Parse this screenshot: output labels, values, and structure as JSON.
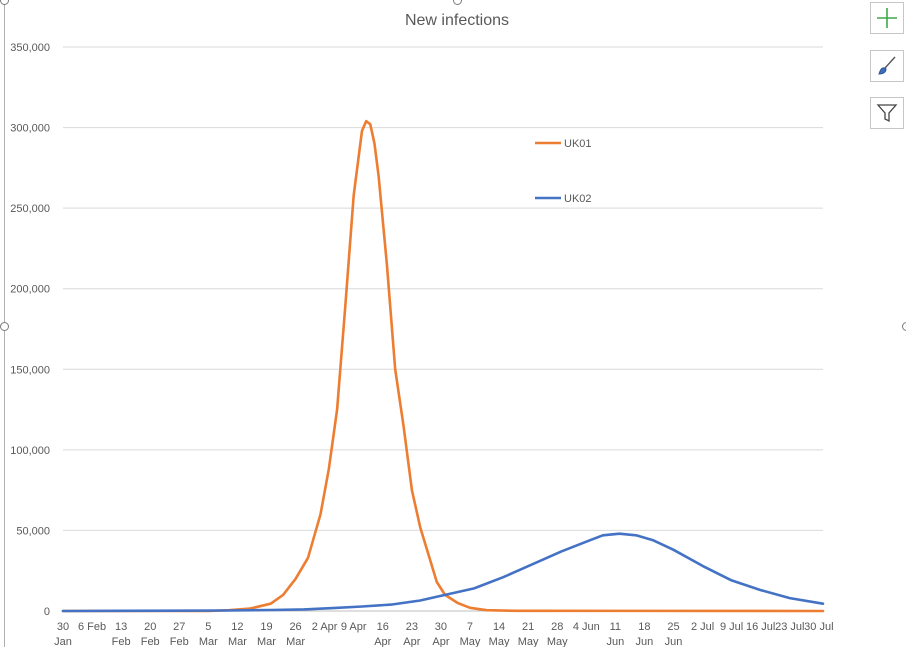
{
  "chart_data": {
    "type": "line",
    "title": "New infections",
    "xlabel": "",
    "ylabel": "",
    "ylim": [
      0,
      350000
    ],
    "yticks": [
      {
        "value": 0,
        "label": "0"
      },
      {
        "value": 50000,
        "label": "50,000"
      },
      {
        "value": 100000,
        "label": "100,000"
      },
      {
        "value": 150000,
        "label": "150,000"
      },
      {
        "value": 200000,
        "label": "200,000"
      },
      {
        "value": 250000,
        "label": "250,000"
      },
      {
        "value": 300000,
        "label": "300,000"
      },
      {
        "value": 350000,
        "label": "350,000"
      }
    ],
    "xlim": [
      "2020-01-30",
      "2020-07-31"
    ],
    "xticks": [
      {
        "date": "2020-01-30",
        "line1": "30",
        "line2": "Jan"
      },
      {
        "date": "2020-02-06",
        "line1": "6 Feb",
        "line2": ""
      },
      {
        "date": "2020-02-13",
        "line1": "13",
        "line2": "Feb"
      },
      {
        "date": "2020-02-20",
        "line1": "20",
        "line2": "Feb"
      },
      {
        "date": "2020-02-27",
        "line1": "27",
        "line2": "Feb"
      },
      {
        "date": "2020-03-05",
        "line1": "5",
        "line2": "Mar"
      },
      {
        "date": "2020-03-12",
        "line1": "12",
        "line2": "Mar"
      },
      {
        "date": "2020-03-19",
        "line1": "19",
        "line2": "Mar"
      },
      {
        "date": "2020-03-26",
        "line1": "26",
        "line2": "Mar"
      },
      {
        "date": "2020-04-02",
        "line1": "2 Apr",
        "line2": ""
      },
      {
        "date": "2020-04-09",
        "line1": "9 Apr",
        "line2": ""
      },
      {
        "date": "2020-04-16",
        "line1": "16",
        "line2": "Apr"
      },
      {
        "date": "2020-04-23",
        "line1": "23",
        "line2": "Apr"
      },
      {
        "date": "2020-04-30",
        "line1": "30",
        "line2": "Apr"
      },
      {
        "date": "2020-05-07",
        "line1": "7",
        "line2": "May"
      },
      {
        "date": "2020-05-14",
        "line1": "14",
        "line2": "May"
      },
      {
        "date": "2020-05-21",
        "line1": "21",
        "line2": "May"
      },
      {
        "date": "2020-05-28",
        "line1": "28",
        "line2": "May"
      },
      {
        "date": "2020-06-04",
        "line1": "4 Jun",
        "line2": ""
      },
      {
        "date": "2020-06-11",
        "line1": "11",
        "line2": "Jun"
      },
      {
        "date": "2020-06-18",
        "line1": "18",
        "line2": "Jun"
      },
      {
        "date": "2020-06-25",
        "line1": "25",
        "line2": "Jun"
      },
      {
        "date": "2020-07-02",
        "line1": "2 Jul",
        "line2": ""
      },
      {
        "date": "2020-07-09",
        "line1": "9 Jul",
        "line2": ""
      },
      {
        "date": "2020-07-16",
        "line1": "16 Jul",
        "line2": ""
      },
      {
        "date": "2020-07-23",
        "line1": "23 Jul",
        "line2": ""
      },
      {
        "date": "2020-07-30",
        "line1": "30 Jul",
        "line2": ""
      }
    ],
    "grid": true,
    "legend_position": "top-right",
    "series": [
      {
        "name": "UK01",
        "color": "#ED7D31",
        "points": [
          [
            "2020-01-30",
            0
          ],
          [
            "2020-03-05",
            0
          ],
          [
            "2020-03-10",
            500
          ],
          [
            "2020-03-15",
            1500
          ],
          [
            "2020-03-20",
            4500
          ],
          [
            "2020-03-23",
            10000
          ],
          [
            "2020-03-26",
            20000
          ],
          [
            "2020-03-29",
            33000
          ],
          [
            "2020-04-01",
            60000
          ],
          [
            "2020-04-03",
            88000
          ],
          [
            "2020-04-05",
            125000
          ],
          [
            "2020-04-07",
            190000
          ],
          [
            "2020-04-09",
            258000
          ],
          [
            "2020-04-11",
            298000
          ],
          [
            "2020-04-12",
            304000
          ],
          [
            "2020-04-13",
            302000
          ],
          [
            "2020-04-14",
            290000
          ],
          [
            "2020-04-15",
            270000
          ],
          [
            "2020-04-17",
            215000
          ],
          [
            "2020-04-19",
            150000
          ],
          [
            "2020-04-21",
            115000
          ],
          [
            "2020-04-23",
            75000
          ],
          [
            "2020-04-25",
            52000
          ],
          [
            "2020-04-27",
            35000
          ],
          [
            "2020-04-29",
            18000
          ],
          [
            "2020-05-01",
            10000
          ],
          [
            "2020-05-04",
            5000
          ],
          [
            "2020-05-07",
            2000
          ],
          [
            "2020-05-11",
            500
          ],
          [
            "2020-05-18",
            100
          ],
          [
            "2020-07-31",
            0
          ]
        ]
      },
      {
        "name": "UK02",
        "color": "#4472C4",
        "points": [
          [
            "2020-01-30",
            0
          ],
          [
            "2020-03-10",
            300
          ],
          [
            "2020-03-20",
            600
          ],
          [
            "2020-03-28",
            1000
          ],
          [
            "2020-04-04",
            1800
          ],
          [
            "2020-04-11",
            2800
          ],
          [
            "2020-04-18",
            4000
          ],
          [
            "2020-04-25",
            6500
          ],
          [
            "2020-05-01",
            10000
          ],
          [
            "2020-05-08",
            14000
          ],
          [
            "2020-05-15",
            21000
          ],
          [
            "2020-05-22",
            29000
          ],
          [
            "2020-05-29",
            37000
          ],
          [
            "2020-06-05",
            44000
          ],
          [
            "2020-06-08",
            47000
          ],
          [
            "2020-06-12",
            48000
          ],
          [
            "2020-06-16",
            47000
          ],
          [
            "2020-06-20",
            44000
          ],
          [
            "2020-06-25",
            38000
          ],
          [
            "2020-07-02",
            28000
          ],
          [
            "2020-07-09",
            19000
          ],
          [
            "2020-07-16",
            13000
          ],
          [
            "2020-07-23",
            8000
          ],
          [
            "2020-07-31",
            4500
          ]
        ]
      }
    ]
  },
  "toolbar": {
    "items": [
      {
        "name": "chart-elements-button",
        "icon": "plus-icon",
        "color": "#3DAA4A"
      },
      {
        "name": "chart-styles-button",
        "icon": "paintbrush-icon",
        "color": "#3E6EB5"
      },
      {
        "name": "chart-filters-button",
        "icon": "funnel-icon",
        "color": "#444444"
      }
    ]
  }
}
